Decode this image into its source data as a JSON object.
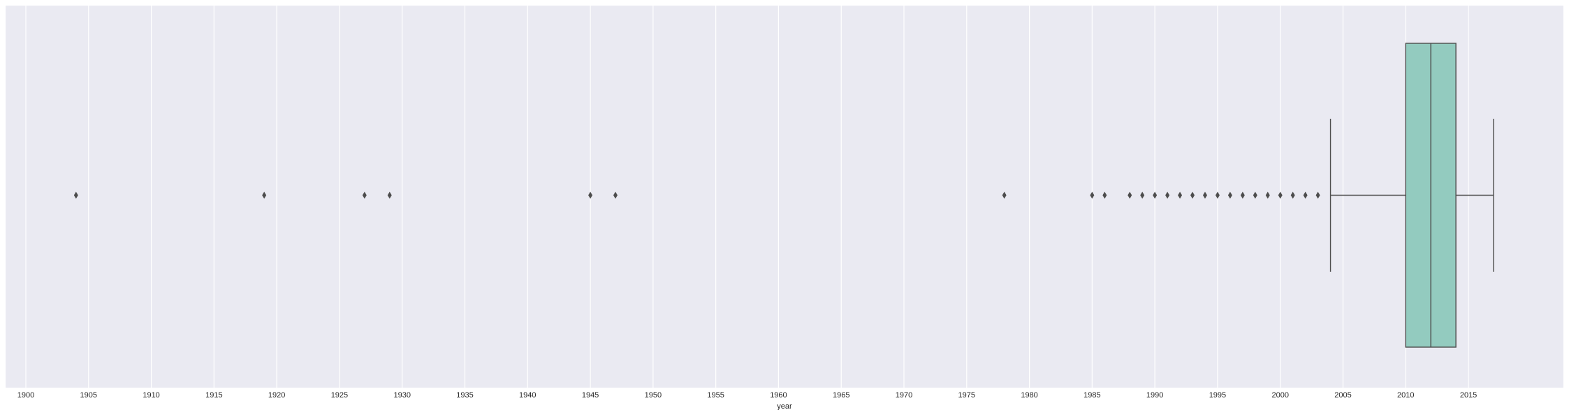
{
  "chart_data": {
    "type": "box",
    "orientation": "horizontal",
    "xlabel": "year",
    "xlim": [
      1899.5,
      2022.5
    ],
    "ticks": [
      1900,
      1905,
      1910,
      1915,
      1920,
      1925,
      1930,
      1935,
      1940,
      1945,
      1950,
      1955,
      1960,
      1965,
      1970,
      1975,
      1980,
      1985,
      1990,
      1995,
      2000,
      2005,
      2010,
      2015
    ],
    "tick_labels": [
      "1900",
      "1905",
      "1910",
      "1915",
      "1920",
      "1925",
      "1930",
      "1935",
      "1940",
      "1945",
      "1950",
      "1955",
      "1960",
      "1965",
      "1970",
      "1975",
      "1980",
      "1985",
      "1990",
      "1995",
      "2000",
      "2005",
      "2010",
      "2015"
    ],
    "grid": true,
    "box": {
      "q1": 2010,
      "median": 2012,
      "q3": 2014,
      "whisker_low": 2004,
      "whisker_high": 2017
    },
    "outliers": [
      1904,
      1919,
      1927,
      1929,
      1945,
      1947,
      1978,
      1985,
      1986,
      1988,
      1989,
      1990,
      1991,
      1992,
      1993,
      1994,
      1995,
      1996,
      1997,
      1998,
      1999,
      2000,
      2001,
      2002,
      2003
    ],
    "colors": {
      "background": "#eaeaf2",
      "grid": "#ffffff",
      "box_fill": "#93cbbf",
      "line": "#4d4d4d"
    }
  }
}
